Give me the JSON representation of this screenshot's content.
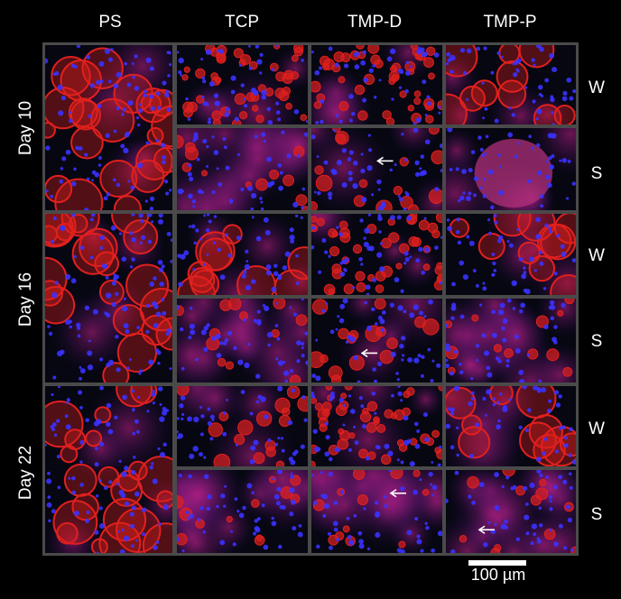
{
  "columns": [
    "PS",
    "TCP",
    "TMP-D",
    "TMP-P"
  ],
  "rows": [
    "Day 10",
    "Day 16",
    "Day 22"
  ],
  "conditions": [
    "W",
    "S",
    "W",
    "S",
    "W",
    "S"
  ],
  "scale_bar": "100 µm",
  "colors": {
    "membrane": "#e0201e",
    "nucleus": "#3a32ff",
    "background": "#070712",
    "frame": "#4a4a4a"
  }
}
